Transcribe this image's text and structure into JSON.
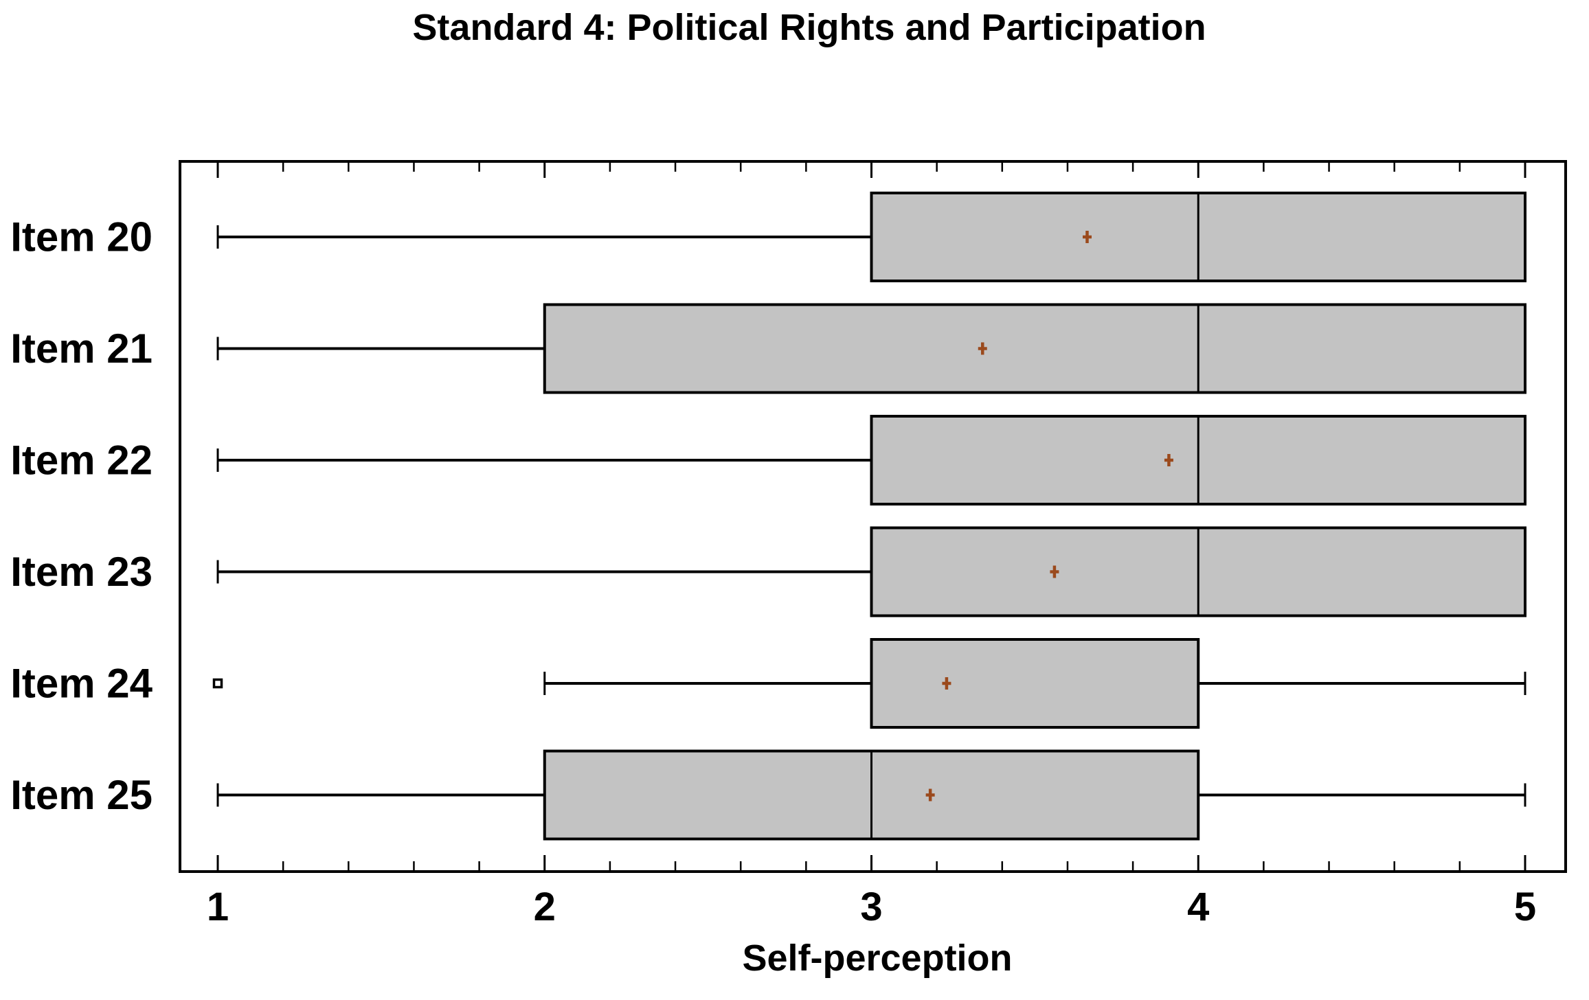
{
  "figure": {
    "title": "Standard 4: Political Rights and Participation",
    "xlabel": "Self-perception"
  },
  "chart_data": {
    "type": "boxplot",
    "orientation": "horizontal",
    "title": "Standard 4: Political Rights and Participation",
    "xlabel": "Self-perception",
    "ylabel": "",
    "xlim": [
      1,
      5
    ],
    "x_major_ticks": [
      1,
      2,
      3,
      4,
      5
    ],
    "x_minor_tick_step": 0.2,
    "grid": false,
    "legend": false,
    "mean_marker_symbol": "plus",
    "outlier_marker_symbol": "hollow-square",
    "categories": [
      "Item 20",
      "Item 21",
      "Item 22",
      "Item 23",
      "Item 24",
      "Item 25"
    ],
    "rows": [
      {
        "label": "Item 20",
        "whisker_low": 1,
        "q1": 3,
        "median": 4,
        "q3": 5,
        "whisker_high": 5,
        "mean": 3.66,
        "outliers": []
      },
      {
        "label": "Item 21",
        "whisker_low": 1,
        "q1": 2,
        "median": 4,
        "q3": 5,
        "whisker_high": 5,
        "mean": 3.34,
        "outliers": []
      },
      {
        "label": "Item 22",
        "whisker_low": 1,
        "q1": 3,
        "median": 4,
        "q3": 5,
        "whisker_high": 5,
        "mean": 3.91,
        "outliers": []
      },
      {
        "label": "Item 23",
        "whisker_low": 1,
        "q1": 3,
        "median": 4,
        "q3": 5,
        "whisker_high": 5,
        "mean": 3.56,
        "outliers": []
      },
      {
        "label": "Item 24",
        "whisker_low": 2,
        "q1": 3,
        "median": 3,
        "q3": 4,
        "whisker_high": 5,
        "mean": 3.23,
        "outliers": [
          1
        ]
      },
      {
        "label": "Item 25",
        "whisker_low": 1,
        "q1": 2,
        "median": 3,
        "q3": 4,
        "whisker_high": 5,
        "mean": 3.18,
        "outliers": []
      }
    ],
    "colors": {
      "box_fill": "#c3c3c3",
      "line": "#000000",
      "mean_marker": "#9b4a1d",
      "background": "#ffffff"
    }
  }
}
